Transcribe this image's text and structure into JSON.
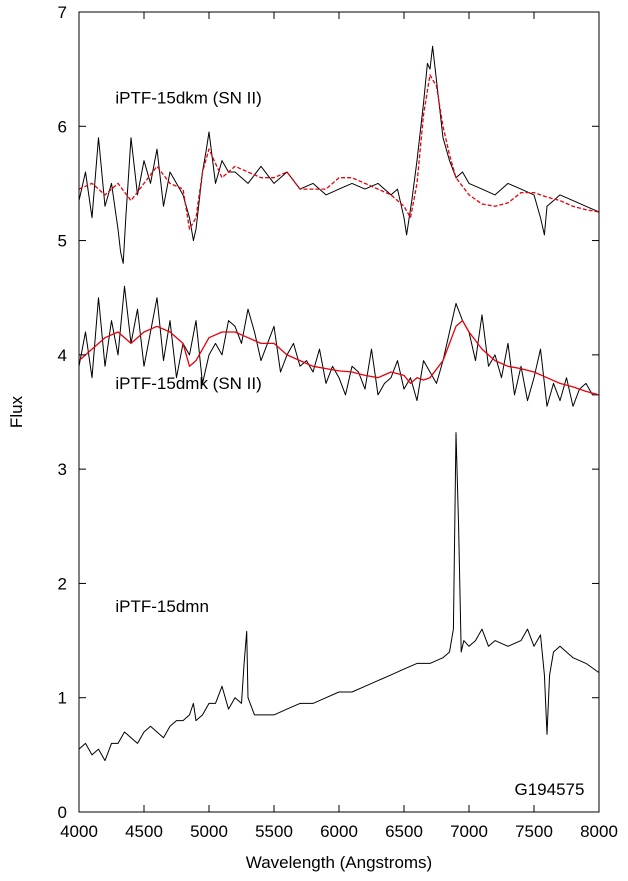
{
  "chart_data": {
    "type": "line",
    "title": "",
    "xlabel": "Wavelength (Angstroms)",
    "ylabel": "Flux",
    "xlim": [
      4000,
      8000
    ],
    "ylim": [
      0,
      7
    ],
    "xticks": [
      "4000",
      "4500",
      "5000",
      "5500",
      "6000",
      "6500",
      "7000",
      "7500",
      "8000"
    ],
    "yticks": [
      "0",
      "1",
      "2",
      "3",
      "4",
      "5",
      "6",
      "7"
    ],
    "grid": false,
    "annotations": [
      {
        "text": "iPTF-15dkm (SN II)",
        "x": 4280,
        "y": 6.2
      },
      {
        "text": "iPTF-15dmk (SN II)",
        "x": 4280,
        "y": 3.7
      },
      {
        "text": "iPTF-15dmn",
        "x": 4280,
        "y": 1.75
      },
      {
        "text": "G194575",
        "x": 7350,
        "y": 0.15
      }
    ],
    "series": [
      {
        "color": "#000000",
        "style": "solid",
        "x": [
          4000,
          4050,
          4100,
          4150,
          4200,
          4250,
          4300,
          4320,
          4340,
          4360,
          4400,
          4450,
          4500,
          4550,
          4600,
          4650,
          4700,
          4750,
          4800,
          4850,
          4880,
          4900,
          4950,
          4980,
          5000,
          5050,
          5100,
          5150,
          5200,
          5300,
          5400,
          5500,
          5600,
          5700,
          5800,
          5900,
          6000,
          6100,
          6200,
          6300,
          6400,
          6450,
          6500,
          6520,
          6540,
          6560,
          6600,
          6650,
          6680,
          6700,
          6720,
          6750,
          6800,
          6850,
          6900,
          6950,
          7000,
          7100,
          7200,
          7300,
          7400,
          7500,
          7550,
          7580,
          7600,
          7650,
          7700,
          7800,
          7900,
          8000
        ],
        "y": [
          5.35,
          5.6,
          5.2,
          5.9,
          5.3,
          5.5,
          5.1,
          4.9,
          4.8,
          5.2,
          5.9,
          5.4,
          5.7,
          5.5,
          5.8,
          5.3,
          5.6,
          5.5,
          5.4,
          5.2,
          5.0,
          5.1,
          5.6,
          5.8,
          5.95,
          5.5,
          5.7,
          5.6,
          5.6,
          5.5,
          5.65,
          5.5,
          5.6,
          5.45,
          5.5,
          5.4,
          5.45,
          5.5,
          5.45,
          5.5,
          5.4,
          5.45,
          5.2,
          5.05,
          5.2,
          5.35,
          5.7,
          6.2,
          6.55,
          6.5,
          6.7,
          6.4,
          5.9,
          5.7,
          5.55,
          5.6,
          5.5,
          5.45,
          5.4,
          5.5,
          5.45,
          5.4,
          5.2,
          5.05,
          5.3,
          5.35,
          5.4,
          5.35,
          5.3,
          5.25
        ]
      },
      {
        "color": "#e8000b",
        "style": "dashed",
        "x": [
          4000,
          4100,
          4200,
          4300,
          4400,
          4500,
          4600,
          4700,
          4800,
          4850,
          4900,
          4950,
          5000,
          5100,
          5200,
          5300,
          5400,
          5500,
          5600,
          5700,
          5800,
          5900,
          6000,
          6100,
          6200,
          6300,
          6400,
          6500,
          6550,
          6600,
          6650,
          6700,
          6750,
          6800,
          6850,
          6900,
          7000,
          7100,
          7200,
          7300,
          7400,
          7500,
          7600,
          7700,
          7800,
          7900,
          8000
        ],
        "y": [
          5.45,
          5.5,
          5.4,
          5.5,
          5.35,
          5.5,
          5.65,
          5.5,
          5.45,
          5.1,
          5.2,
          5.6,
          5.8,
          5.55,
          5.65,
          5.6,
          5.55,
          5.55,
          5.6,
          5.45,
          5.45,
          5.45,
          5.55,
          5.55,
          5.5,
          5.45,
          5.4,
          5.3,
          5.2,
          5.5,
          6.1,
          6.45,
          6.35,
          6.0,
          5.75,
          5.55,
          5.4,
          5.32,
          5.3,
          5.33,
          5.42,
          5.42,
          5.38,
          5.35,
          5.3,
          5.27,
          5.25
        ]
      },
      {
        "color": "#000000",
        "style": "solid",
        "x": [
          4000,
          4050,
          4100,
          4150,
          4200,
          4250,
          4300,
          4350,
          4400,
          4450,
          4500,
          4550,
          4600,
          4650,
          4700,
          4750,
          4800,
          4850,
          4900,
          4950,
          5000,
          5050,
          5100,
          5150,
          5200,
          5250,
          5300,
          5350,
          5400,
          5450,
          5500,
          5550,
          5600,
          5650,
          5700,
          5750,
          5800,
          5850,
          5900,
          5950,
          6000,
          6050,
          6100,
          6150,
          6200,
          6250,
          6300,
          6350,
          6400,
          6450,
          6500,
          6550,
          6600,
          6650,
          6700,
          6750,
          6800,
          6850,
          6900,
          6950,
          7000,
          7050,
          7100,
          7150,
          7200,
          7250,
          7300,
          7350,
          7400,
          7450,
          7500,
          7550,
          7600,
          7650,
          7700,
          7750,
          7800,
          7850,
          7900,
          7950,
          8000
        ],
        "y": [
          3.9,
          4.2,
          3.8,
          4.5,
          3.9,
          4.3,
          4.0,
          4.6,
          4.1,
          4.4,
          3.9,
          4.2,
          4.5,
          3.95,
          4.3,
          3.8,
          4.1,
          4.0,
          4.3,
          3.75,
          4.0,
          4.1,
          4.0,
          4.3,
          4.25,
          4.1,
          4.4,
          4.2,
          3.95,
          4.1,
          4.25,
          3.85,
          4.0,
          4.1,
          3.9,
          3.95,
          3.85,
          4.05,
          3.75,
          3.9,
          3.8,
          3.65,
          3.9,
          3.85,
          3.7,
          4.05,
          3.65,
          3.75,
          3.8,
          3.95,
          3.7,
          3.8,
          3.6,
          3.95,
          3.85,
          3.75,
          3.95,
          4.2,
          4.45,
          4.3,
          4.2,
          3.95,
          4.35,
          3.9,
          4.0,
          3.8,
          4.1,
          3.65,
          3.9,
          3.6,
          3.8,
          4.05,
          3.55,
          3.75,
          3.6,
          3.8,
          3.55,
          3.7,
          3.75,
          3.65,
          3.65
        ]
      },
      {
        "color": "#e8000b",
        "style": "solid",
        "x": [
          4000,
          4100,
          4200,
          4300,
          4400,
          4500,
          4600,
          4700,
          4800,
          4850,
          4900,
          5000,
          5100,
          5200,
          5300,
          5400,
          5500,
          5600,
          5700,
          5800,
          5900,
          6000,
          6100,
          6200,
          6300,
          6400,
          6500,
          6550,
          6600,
          6650,
          6700,
          6800,
          6900,
          6950,
          7000,
          7100,
          7200,
          7300,
          7400,
          7500,
          7600,
          7700,
          7800,
          7900,
          8000
        ],
        "y": [
          3.95,
          4.05,
          4.15,
          4.2,
          4.1,
          4.2,
          4.25,
          4.2,
          4.1,
          3.9,
          3.95,
          4.15,
          4.2,
          4.2,
          4.15,
          4.1,
          4.1,
          4.0,
          3.95,
          3.9,
          3.88,
          3.86,
          3.85,
          3.82,
          3.8,
          3.85,
          3.82,
          3.75,
          3.8,
          3.78,
          3.8,
          3.95,
          4.25,
          4.3,
          4.2,
          4.05,
          3.95,
          3.9,
          3.88,
          3.85,
          3.8,
          3.75,
          3.72,
          3.68,
          3.65
        ]
      },
      {
        "color": "#000000",
        "style": "solid",
        "x": [
          4000,
          4050,
          4100,
          4150,
          4200,
          4250,
          4300,
          4350,
          4400,
          4450,
          4500,
          4550,
          4600,
          4650,
          4700,
          4750,
          4800,
          4850,
          4880,
          4900,
          4950,
          5000,
          5050,
          5100,
          5150,
          5200,
          5250,
          5270,
          5290,
          5300,
          5350,
          5400,
          5500,
          5600,
          5700,
          5800,
          5900,
          6000,
          6100,
          6200,
          6300,
          6400,
          6500,
          6600,
          6700,
          6800,
          6850,
          6880,
          6900,
          6920,
          6940,
          6960,
          7000,
          7050,
          7100,
          7150,
          7200,
          7300,
          7400,
          7450,
          7500,
          7550,
          7580,
          7600,
          7620,
          7650,
          7700,
          7750,
          7800,
          7900,
          8000
        ],
        "y": [
          0.55,
          0.6,
          0.5,
          0.55,
          0.45,
          0.6,
          0.6,
          0.7,
          0.65,
          0.6,
          0.7,
          0.75,
          0.7,
          0.65,
          0.75,
          0.8,
          0.8,
          0.85,
          0.95,
          0.8,
          0.85,
          0.95,
          0.95,
          1.1,
          0.9,
          1.0,
          0.95,
          1.3,
          1.58,
          1.0,
          0.85,
          0.85,
          0.85,
          0.9,
          0.95,
          0.95,
          1.0,
          1.05,
          1.05,
          1.1,
          1.15,
          1.2,
          1.25,
          1.3,
          1.3,
          1.35,
          1.4,
          1.6,
          3.32,
          2.5,
          1.4,
          1.5,
          1.45,
          1.5,
          1.6,
          1.45,
          1.5,
          1.45,
          1.5,
          1.6,
          1.45,
          1.55,
          1.2,
          0.68,
          1.2,
          1.4,
          1.45,
          1.4,
          1.35,
          1.3,
          1.22
        ]
      }
    ]
  }
}
